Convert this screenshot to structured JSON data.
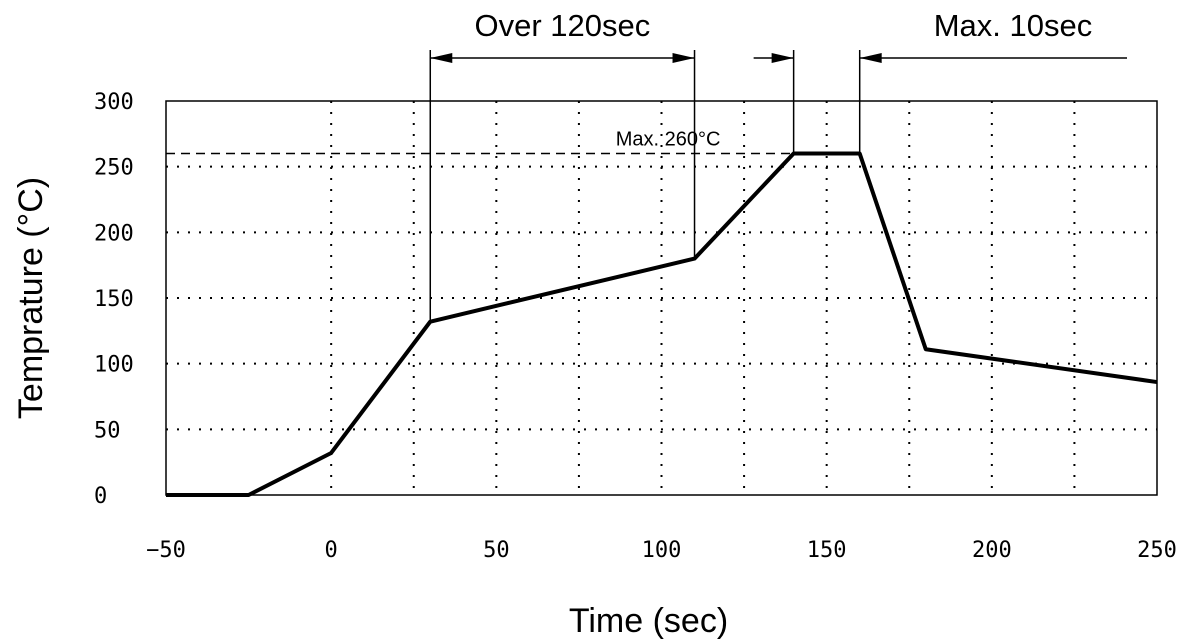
{
  "chart_data": {
    "type": "line",
    "title": "",
    "xlabel": "Time (sec)",
    "ylabel": "Temprature (°C)",
    "xlim": [
      -50,
      250
    ],
    "ylim": [
      0,
      300
    ],
    "x_ticks": [
      -50,
      0,
      50,
      100,
      150,
      200,
      250
    ],
    "y_ticks": [
      0,
      50,
      100,
      150,
      200,
      250,
      300
    ],
    "grid": true,
    "series": [
      {
        "x": [
          -50,
          -25,
          0,
          30,
          110,
          140,
          160,
          180,
          250
        ],
        "y": [
          0,
          0,
          32,
          132,
          180,
          260,
          260,
          111,
          86
        ]
      }
    ],
    "reference_line": {
      "y": 260,
      "label": "Max. 260°C"
    },
    "annotations": [
      {
        "label": "Over 120sec",
        "from_x": 30,
        "to_x": 110
      },
      {
        "label": "Max. 10sec",
        "from_x": 140,
        "to_x": 160
      }
    ]
  }
}
